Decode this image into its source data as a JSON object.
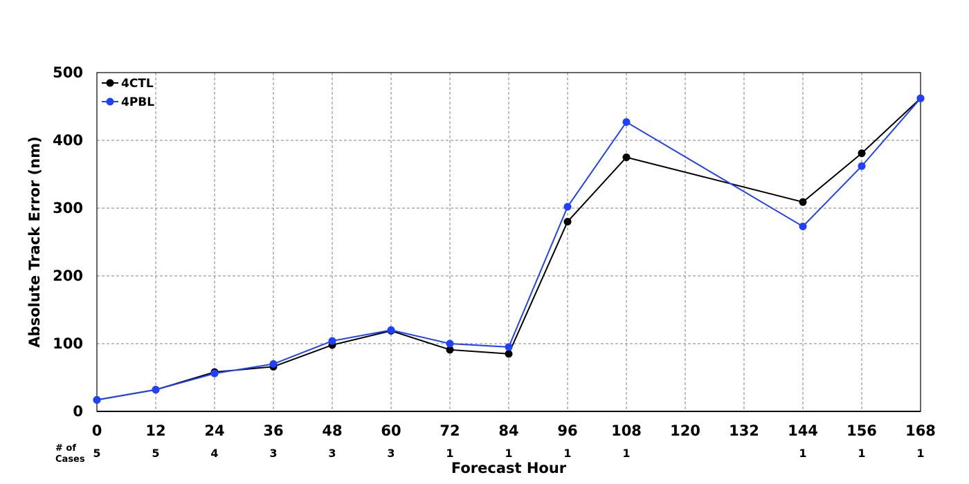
{
  "chart_data": {
    "type": "line",
    "xlabel": "Forecast Hour",
    "ylabel": "Absolute Track Error (nm)",
    "xlim": [
      0,
      168
    ],
    "ylim": [
      0,
      500
    ],
    "x_ticks": [
      0,
      12,
      24,
      36,
      48,
      60,
      72,
      84,
      96,
      108,
      120,
      132,
      144,
      156,
      168
    ],
    "y_ticks": [
      0,
      100,
      200,
      300,
      400,
      500
    ],
    "grid": true,
    "legend_position": "top-left",
    "series": [
      {
        "name": "4CTL",
        "color": "#000000",
        "x": [
          0,
          12,
          24,
          36,
          48,
          60,
          72,
          84,
          96,
          108,
          144,
          156,
          168
        ],
        "y": [
          17,
          32,
          58,
          66,
          98,
          119,
          91,
          85,
          280,
          375,
          309,
          381,
          462
        ]
      },
      {
        "name": "4PBL",
        "color": "#2040ff",
        "x": [
          0,
          12,
          24,
          36,
          48,
          60,
          72,
          84,
          96,
          108,
          144,
          156,
          168
        ],
        "y": [
          17,
          32,
          56,
          70,
          104,
          120,
          100,
          95,
          302,
          427,
          273,
          362,
          462
        ]
      }
    ],
    "cases": {
      "header_line1": "# of",
      "header_line2": "Cases",
      "x": [
        0,
        12,
        24,
        36,
        48,
        60,
        72,
        84,
        96,
        108,
        144,
        156,
        168
      ],
      "counts": [
        "5",
        "5",
        "4",
        "3",
        "3",
        "3",
        "1",
        "1",
        "1",
        "1",
        "1",
        "1",
        "1"
      ]
    }
  }
}
